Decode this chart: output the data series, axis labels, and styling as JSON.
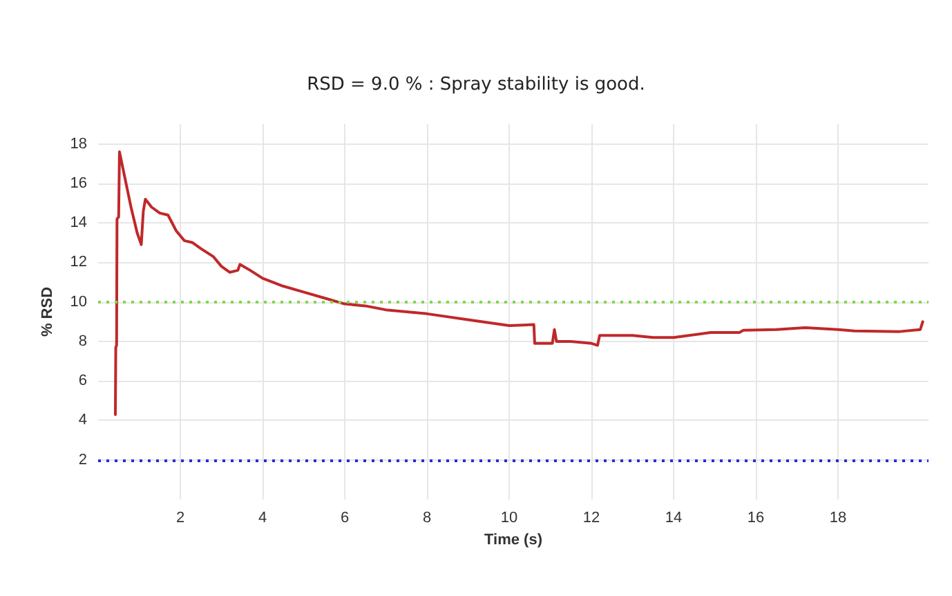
{
  "chart_data": {
    "type": "line",
    "title": "RSD = 9.0 % : Spray stability is good.",
    "xlabel": "Time (s)",
    "ylabel": "% RSD",
    "xlim": [
      0,
      20.2
    ],
    "xticks": [
      2,
      4,
      6,
      8,
      10,
      12,
      14,
      16,
      18
    ],
    "ylim": [
      0,
      19
    ],
    "yticks": [
      2,
      4,
      6,
      8,
      10,
      12,
      14,
      16,
      18
    ],
    "grid": true,
    "marker": "none",
    "line_style": "solid",
    "series": [
      {
        "color": "#c0282a",
        "x": [
          0.42,
          0.43,
          0.45,
          0.46,
          0.5,
          0.52,
          0.6,
          0.7,
          0.8,
          0.95,
          1.05,
          1.1,
          1.15,
          1.3,
          1.5,
          1.7,
          1.9,
          2.1,
          2.3,
          2.5,
          2.8,
          3.0,
          3.2,
          3.4,
          3.45,
          3.7,
          4.0,
          4.5,
          5.0,
          5.5,
          6.0,
          6.5,
          7.0,
          8.0,
          9.0,
          10.0,
          10.6,
          10.62,
          11.05,
          11.1,
          11.15,
          11.5,
          12.0,
          12.15,
          12.2,
          13.0,
          13.5,
          14.0,
          14.9,
          15.6,
          15.7,
          16.5,
          17.2,
          18.0,
          18.4,
          19.5,
          20.0,
          20.06
        ],
        "values": [
          4.3,
          7.7,
          7.8,
          14.2,
          14.3,
          17.6,
          16.8,
          15.8,
          14.8,
          13.5,
          12.9,
          14.6,
          15.2,
          14.8,
          14.5,
          14.4,
          13.6,
          13.1,
          13.0,
          12.7,
          12.3,
          11.8,
          11.5,
          11.6,
          11.9,
          11.6,
          11.2,
          10.8,
          10.5,
          10.2,
          9.9,
          9.8,
          9.6,
          9.4,
          9.1,
          8.8,
          8.85,
          7.9,
          7.9,
          8.6,
          8.0,
          8.0,
          7.9,
          7.8,
          8.3,
          8.3,
          8.2,
          8.2,
          8.45,
          8.45,
          8.57,
          8.6,
          8.7,
          8.6,
          8.53,
          8.5,
          8.6,
          9.0
        ]
      }
    ],
    "ref_lines": [
      {
        "axis": "y",
        "value": 10,
        "color": "#7dd84a",
        "line_style": "dotted"
      },
      {
        "axis": "y",
        "value": 2,
        "color": "#2a2ad0",
        "line_style": "dotted"
      }
    ]
  }
}
